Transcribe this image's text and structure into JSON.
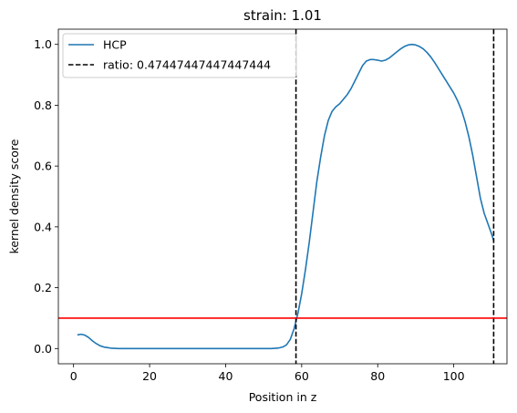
{
  "chart_data": {
    "type": "line",
    "title": "strain: 1.01",
    "xlabel": "Position in z",
    "ylabel": "kernel density score",
    "xlim": [
      -4,
      114
    ],
    "ylim": [
      -0.05,
      1.05
    ],
    "x_ticks": [
      0,
      20,
      40,
      60,
      80,
      100
    ],
    "x_tick_labels": [
      "0",
      "20",
      "40",
      "60",
      "80",
      "100"
    ],
    "y_ticks": [
      0.0,
      0.2,
      0.4,
      0.6,
      0.8,
      1.0
    ],
    "y_tick_labels": [
      "0.0",
      "0.2",
      "0.4",
      "0.6",
      "0.8",
      "1.0"
    ],
    "grid": false,
    "legend_position": "top-left",
    "series": [
      {
        "name": "HCP",
        "color": "#1f77b4",
        "x": [
          1,
          2,
          3,
          4,
          5,
          6,
          7,
          8,
          9,
          10,
          12,
          15,
          20,
          30,
          40,
          48,
          52,
          54,
          55,
          56,
          57,
          58,
          59,
          60,
          61,
          62,
          63,
          64,
          65,
          66,
          67,
          68,
          69,
          70,
          71,
          72,
          73,
          74,
          75,
          76,
          77,
          78,
          79,
          80,
          81,
          82,
          83,
          84,
          85,
          86,
          87,
          88,
          89,
          90,
          91,
          92,
          93,
          94,
          95,
          96,
          97,
          98,
          99,
          100,
          101,
          102,
          103,
          104,
          105,
          106,
          107,
          108,
          109,
          110,
          110.5
        ],
        "y": [
          0.045,
          0.047,
          0.044,
          0.036,
          0.025,
          0.016,
          0.009,
          0.005,
          0.003,
          0.001,
          0.0,
          0.0,
          0.0,
          0.0,
          0.0,
          0.0,
          0.0,
          0.002,
          0.005,
          0.012,
          0.03,
          0.065,
          0.115,
          0.18,
          0.26,
          0.35,
          0.45,
          0.55,
          0.63,
          0.7,
          0.75,
          0.78,
          0.795,
          0.805,
          0.82,
          0.835,
          0.855,
          0.88,
          0.905,
          0.93,
          0.945,
          0.95,
          0.95,
          0.948,
          0.945,
          0.948,
          0.955,
          0.965,
          0.975,
          0.985,
          0.993,
          0.998,
          1.0,
          0.998,
          0.993,
          0.985,
          0.973,
          0.958,
          0.94,
          0.92,
          0.9,
          0.88,
          0.86,
          0.84,
          0.815,
          0.785,
          0.745,
          0.695,
          0.635,
          0.565,
          0.495,
          0.445,
          0.41,
          0.375,
          0.355
        ]
      },
      {
        "name": "ratio: 0.47447447447447444",
        "color": "#000000",
        "style": "dashed",
        "vertical_lines_x": [
          58.5,
          110.5
        ]
      }
    ],
    "horizontal_line": {
      "y": 0.1,
      "color": "#ff0000"
    }
  }
}
